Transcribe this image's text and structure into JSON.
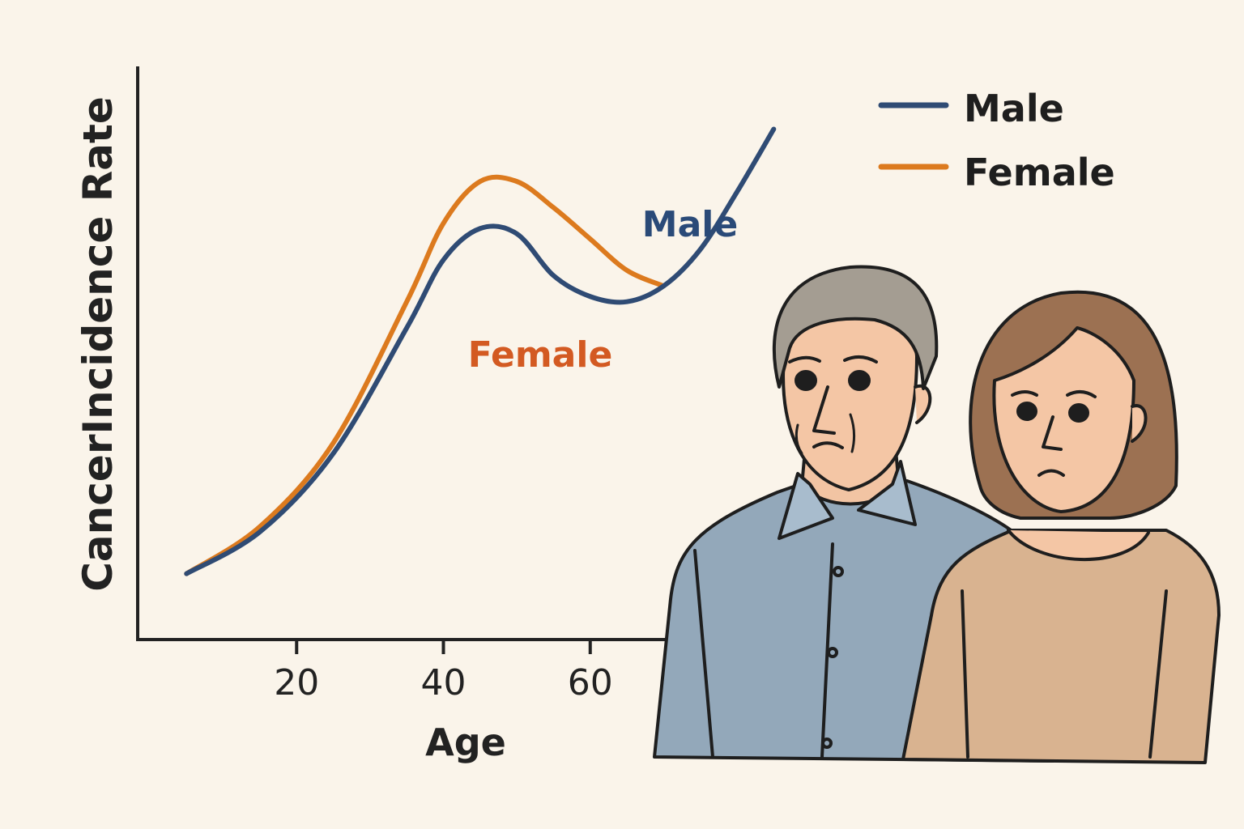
{
  "chart_data": {
    "type": "line",
    "title": "",
    "xlabel": "Age",
    "ylabel": "CancerIncidence Rate",
    "x_ticks": [
      20,
      40,
      60
    ],
    "xlim": [
      0,
      80
    ],
    "ylim": [
      0,
      100
    ],
    "grid": false,
    "legend_position": "top-right",
    "series": [
      {
        "name": "Male",
        "color": "#2f4b74",
        "x": [
          5,
          15,
          25,
          35,
          40,
          45,
          50,
          55,
          60,
          65,
          70,
          75,
          80,
          85
        ],
        "y": [
          3,
          11,
          26,
          50,
          63,
          69,
          68,
          60,
          56,
          55,
          58,
          65,
          76,
          88
        ]
      },
      {
        "name": "Female",
        "color": "#dc7a1e",
        "x": [
          5,
          15,
          25,
          35,
          40,
          45,
          50,
          55,
          60,
          65,
          70
        ],
        "y": [
          3,
          12,
          28,
          55,
          70,
          78,
          78,
          73,
          67,
          61,
          58
        ]
      }
    ],
    "annotations": [
      {
        "text": "Male",
        "color": "#2a4a78"
      },
      {
        "text": "Female",
        "color": "#d35a22"
      }
    ]
  }
}
